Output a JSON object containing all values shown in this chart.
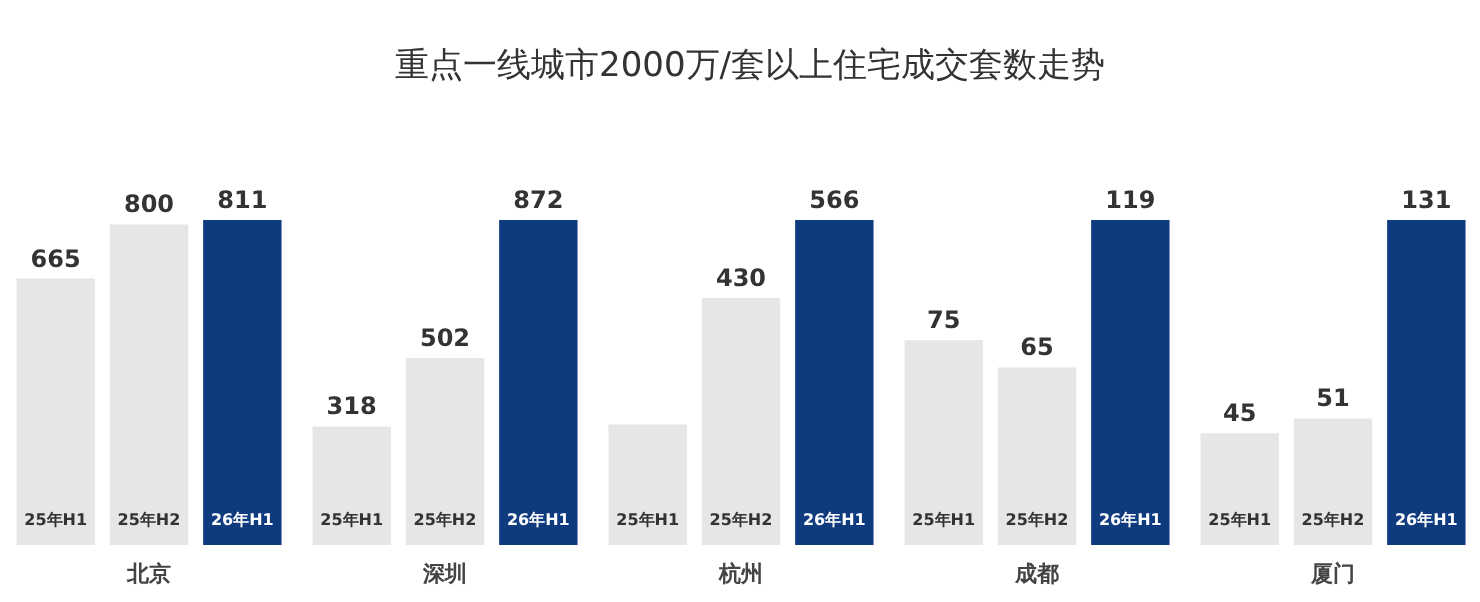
{
  "chart_data": [
    {
      "type": "other",
      "title": "重点一线城市2000万/套以上住宅成交套数走势"
    },
    {
      "type": "bar",
      "xlabel": "北京",
      "categories": [
        "25年H1",
        "25年H2",
        "26年H1"
      ],
      "values": [
        665,
        800,
        811
      ],
      "colors": [
        "#e6e6e6",
        "#e6e6e6",
        "#0e3a7e"
      ],
      "data_labels": true
    },
    {
      "type": "bar",
      "xlabel": "深圳",
      "categories": [
        "25年H1",
        "25年H2",
        "26年H1"
      ],
      "values": [
        318,
        502,
        872
      ],
      "colors": [
        "#e6e6e6",
        "#e6e6e6",
        "#0e3a7e"
      ],
      "data_labels": true
    },
    {
      "type": "bar",
      "xlabel": "杭州",
      "categories": [
        "25年H1",
        "25年H2",
        "26年H1"
      ],
      "values": [
        210,
        430,
        566
      ],
      "value_labels": [
        null,
        "430",
        "566"
      ],
      "colors": [
        "#e6e6e6",
        "#e6e6e6",
        "#0e3a7e"
      ]
    },
    {
      "type": "bar",
      "xlabel": "成都",
      "categories": [
        "25年H1",
        "25年H2",
        "26年H1"
      ],
      "values": [
        75,
        65,
        119
      ],
      "colors": [
        "#e6e6e6",
        "#e6e6e6",
        "#0e3a7e"
      ],
      "data_labels": true
    },
    {
      "type": "bar",
      "xlabel": "厦门",
      "categories": [
        "25年H1",
        "25年H2",
        "26年H1"
      ],
      "values": [
        45,
        51,
        131
      ],
      "colors": [
        "#e6e6e6",
        "#e6e6e6",
        "#0e3a7e"
      ],
      "data_labels": true
    }
  ]
}
